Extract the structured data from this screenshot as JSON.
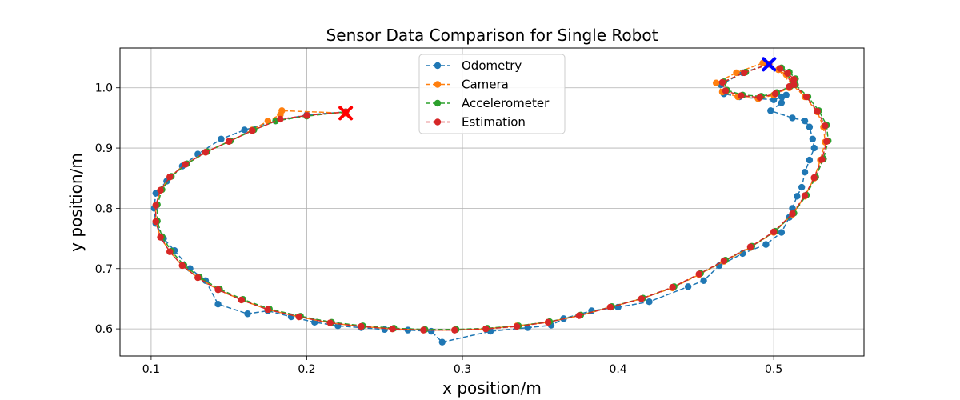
{
  "chart_data": {
    "type": "line",
    "title": "Sensor Data Comparison for Single Robot",
    "xlabel": "x position/m",
    "ylabel": "y position/m",
    "xlim": [
      0.08,
      0.558
    ],
    "ylim": [
      0.555,
      1.066
    ],
    "xticks": [
      0.1,
      0.2,
      0.3,
      0.4,
      0.5
    ],
    "xtick_labels": [
      "0.1",
      "0.2",
      "0.3",
      "0.4",
      "0.5"
    ],
    "yticks": [
      0.6,
      0.7,
      0.8,
      0.9,
      1.0
    ],
    "ytick_labels": [
      "0.6",
      "0.7",
      "0.8",
      "0.9",
      "1.0"
    ],
    "grid": true,
    "legend_position": "top-center",
    "series": [
      {
        "name": "Odometry",
        "color": "#1f77b4",
        "line_style": "dashed",
        "marker": "circle",
        "points": [
          [
            0.497,
            1.039
          ],
          [
            0.48,
            1.025
          ],
          [
            0.466,
            1.005
          ],
          [
            0.468,
            0.99
          ],
          [
            0.478,
            0.985
          ],
          [
            0.49,
            0.982
          ],
          [
            0.5,
            0.98
          ],
          [
            0.505,
            0.985
          ],
          [
            0.508,
            0.988
          ],
          [
            0.505,
            0.975
          ],
          [
            0.498,
            0.962
          ],
          [
            0.512,
            0.95
          ],
          [
            0.52,
            0.945
          ],
          [
            0.523,
            0.935
          ],
          [
            0.525,
            0.915
          ],
          [
            0.526,
            0.9
          ],
          [
            0.523,
            0.88
          ],
          [
            0.52,
            0.86
          ],
          [
            0.518,
            0.835
          ],
          [
            0.515,
            0.82
          ],
          [
            0.512,
            0.8
          ],
          [
            0.51,
            0.785
          ],
          [
            0.505,
            0.76
          ],
          [
            0.495,
            0.74
          ],
          [
            0.48,
            0.725
          ],
          [
            0.465,
            0.705
          ],
          [
            0.455,
            0.68
          ],
          [
            0.445,
            0.67
          ],
          [
            0.42,
            0.645
          ],
          [
            0.4,
            0.636
          ],
          [
            0.383,
            0.63
          ],
          [
            0.365,
            0.617
          ],
          [
            0.357,
            0.606
          ],
          [
            0.342,
            0.602
          ],
          [
            0.318,
            0.596
          ],
          [
            0.287,
            0.578
          ],
          [
            0.28,
            0.596
          ],
          [
            0.265,
            0.598
          ],
          [
            0.25,
            0.599
          ],
          [
            0.235,
            0.602
          ],
          [
            0.22,
            0.605
          ],
          [
            0.205,
            0.611
          ],
          [
            0.19,
            0.62
          ],
          [
            0.175,
            0.63
          ],
          [
            0.162,
            0.625
          ],
          [
            0.143,
            0.641
          ],
          [
            0.135,
            0.68
          ],
          [
            0.125,
            0.7
          ],
          [
            0.115,
            0.73
          ],
          [
            0.108,
            0.75
          ],
          [
            0.103,
            0.775
          ],
          [
            0.102,
            0.8
          ],
          [
            0.103,
            0.825
          ],
          [
            0.11,
            0.845
          ],
          [
            0.12,
            0.87
          ],
          [
            0.13,
            0.89
          ],
          [
            0.145,
            0.915
          ],
          [
            0.16,
            0.93
          ],
          [
            0.18,
            0.945
          ],
          [
            0.2,
            0.955
          ],
          [
            0.225,
            0.96
          ]
        ]
      },
      {
        "name": "Camera",
        "color": "#ff7f0e",
        "line_style": "dashed",
        "marker": "circle",
        "points": [
          [
            0.493,
            1.041
          ],
          [
            0.476,
            1.025
          ],
          [
            0.463,
            1.008
          ],
          [
            0.467,
            0.993
          ],
          [
            0.477,
            0.985
          ],
          [
            0.49,
            0.982
          ],
          [
            0.5,
            0.988
          ],
          [
            0.51,
            1.0
          ],
          [
            0.512,
            1.012
          ],
          [
            0.508,
            1.022
          ],
          [
            0.503,
            1.03
          ],
          [
            0.512,
            1.005
          ],
          [
            0.52,
            0.985
          ],
          [
            0.528,
            0.96
          ],
          [
            0.532,
            0.935
          ],
          [
            0.533,
            0.91
          ],
          [
            0.53,
            0.88
          ],
          [
            0.526,
            0.85
          ],
          [
            0.52,
            0.82
          ],
          [
            0.512,
            0.79
          ],
          [
            0.5,
            0.76
          ],
          [
            0.485,
            0.735
          ],
          [
            0.468,
            0.712
          ],
          [
            0.452,
            0.69
          ],
          [
            0.435,
            0.668
          ],
          [
            0.415,
            0.65
          ],
          [
            0.395,
            0.636
          ],
          [
            0.375,
            0.622
          ],
          [
            0.355,
            0.611
          ],
          [
            0.335,
            0.605
          ],
          [
            0.315,
            0.6
          ],
          [
            0.295,
            0.598
          ],
          [
            0.275,
            0.598
          ],
          [
            0.255,
            0.6
          ],
          [
            0.235,
            0.604
          ],
          [
            0.215,
            0.61
          ],
          [
            0.195,
            0.62
          ],
          [
            0.175,
            0.632
          ],
          [
            0.158,
            0.648
          ],
          [
            0.143,
            0.665
          ],
          [
            0.13,
            0.685
          ],
          [
            0.12,
            0.705
          ],
          [
            0.112,
            0.728
          ],
          [
            0.106,
            0.752
          ],
          [
            0.103,
            0.778
          ],
          [
            0.103,
            0.805
          ],
          [
            0.106,
            0.83
          ],
          [
            0.112,
            0.852
          ],
          [
            0.122,
            0.873
          ],
          [
            0.135,
            0.893
          ],
          [
            0.15,
            0.911
          ],
          [
            0.165,
            0.93
          ],
          [
            0.175,
            0.945
          ],
          [
            0.183,
            0.955
          ],
          [
            0.184,
            0.962
          ],
          [
            0.225,
            0.958
          ]
        ]
      },
      {
        "name": "Accelerometer",
        "color": "#2ca02c",
        "line_style": "dashed",
        "marker": "circle",
        "points": [
          [
            0.497,
            1.039
          ],
          [
            0.482,
            1.026
          ],
          [
            0.468,
            1.01
          ],
          [
            0.47,
            0.996
          ],
          [
            0.48,
            0.988
          ],
          [
            0.492,
            0.986
          ],
          [
            0.502,
            0.992
          ],
          [
            0.511,
            1.003
          ],
          [
            0.514,
            1.015
          ],
          [
            0.51,
            1.026
          ],
          [
            0.505,
            1.033
          ],
          [
            0.514,
            1.005
          ],
          [
            0.522,
            0.985
          ],
          [
            0.529,
            0.962
          ],
          [
            0.534,
            0.938
          ],
          [
            0.535,
            0.912
          ],
          [
            0.532,
            0.882
          ],
          [
            0.527,
            0.852
          ],
          [
            0.521,
            0.822
          ],
          [
            0.513,
            0.792
          ],
          [
            0.501,
            0.762
          ],
          [
            0.486,
            0.737
          ],
          [
            0.469,
            0.714
          ],
          [
            0.453,
            0.692
          ],
          [
            0.436,
            0.67
          ],
          [
            0.416,
            0.651
          ],
          [
            0.396,
            0.637
          ],
          [
            0.376,
            0.623
          ],
          [
            0.356,
            0.612
          ],
          [
            0.336,
            0.605
          ],
          [
            0.316,
            0.601
          ],
          [
            0.296,
            0.599
          ],
          [
            0.276,
            0.599
          ],
          [
            0.256,
            0.601
          ],
          [
            0.236,
            0.605
          ],
          [
            0.216,
            0.611
          ],
          [
            0.196,
            0.621
          ],
          [
            0.176,
            0.633
          ],
          [
            0.159,
            0.649
          ],
          [
            0.144,
            0.666
          ],
          [
            0.131,
            0.686
          ],
          [
            0.121,
            0.706
          ],
          [
            0.113,
            0.729
          ],
          [
            0.107,
            0.753
          ],
          [
            0.104,
            0.779
          ],
          [
            0.104,
            0.806
          ],
          [
            0.107,
            0.831
          ],
          [
            0.113,
            0.853
          ],
          [
            0.123,
            0.874
          ],
          [
            0.136,
            0.894
          ],
          [
            0.151,
            0.912
          ],
          [
            0.166,
            0.93
          ],
          [
            0.18,
            0.945
          ],
          [
            0.2,
            0.953
          ],
          [
            0.225,
            0.96
          ]
        ]
      },
      {
        "name": "Estimation",
        "color": "#d62728",
        "line_style": "dashed",
        "marker": "circle",
        "points": [
          [
            0.497,
            1.039
          ],
          [
            0.481,
            1.025
          ],
          [
            0.467,
            1.009
          ],
          [
            0.469,
            0.995
          ],
          [
            0.479,
            0.987
          ],
          [
            0.491,
            0.984
          ],
          [
            0.501,
            0.99
          ],
          [
            0.51,
            1.002
          ],
          [
            0.513,
            1.014
          ],
          [
            0.509,
            1.024
          ],
          [
            0.504,
            1.032
          ],
          [
            0.513,
            1.005
          ],
          [
            0.521,
            0.985
          ],
          [
            0.528,
            0.961
          ],
          [
            0.533,
            0.937
          ],
          [
            0.534,
            0.911
          ],
          [
            0.531,
            0.881
          ],
          [
            0.526,
            0.851
          ],
          [
            0.52,
            0.821
          ],
          [
            0.512,
            0.791
          ],
          [
            0.5,
            0.761
          ],
          [
            0.485,
            0.736
          ],
          [
            0.468,
            0.713
          ],
          [
            0.452,
            0.691
          ],
          [
            0.435,
            0.669
          ],
          [
            0.415,
            0.65
          ],
          [
            0.395,
            0.636
          ],
          [
            0.375,
            0.622
          ],
          [
            0.355,
            0.611
          ],
          [
            0.335,
            0.604
          ],
          [
            0.315,
            0.6
          ],
          [
            0.295,
            0.598
          ],
          [
            0.275,
            0.598
          ],
          [
            0.255,
            0.6
          ],
          [
            0.235,
            0.604
          ],
          [
            0.215,
            0.61
          ],
          [
            0.195,
            0.62
          ],
          [
            0.175,
            0.632
          ],
          [
            0.158,
            0.648
          ],
          [
            0.143,
            0.665
          ],
          [
            0.13,
            0.685
          ],
          [
            0.12,
            0.705
          ],
          [
            0.112,
            0.728
          ],
          [
            0.106,
            0.752
          ],
          [
            0.103,
            0.778
          ],
          [
            0.103,
            0.805
          ],
          [
            0.106,
            0.83
          ],
          [
            0.112,
            0.852
          ],
          [
            0.122,
            0.873
          ],
          [
            0.135,
            0.893
          ],
          [
            0.15,
            0.911
          ],
          [
            0.165,
            0.929
          ],
          [
            0.183,
            0.948
          ],
          [
            0.2,
            0.954
          ],
          [
            0.225,
            0.96
          ]
        ]
      }
    ],
    "markers": [
      {
        "name": "start",
        "x": 0.497,
        "y": 1.039,
        "color": "#0000ff",
        "shape": "X"
      },
      {
        "name": "end",
        "x": 0.225,
        "y": 0.958,
        "color": "#ff0000",
        "shape": "X"
      }
    ]
  }
}
